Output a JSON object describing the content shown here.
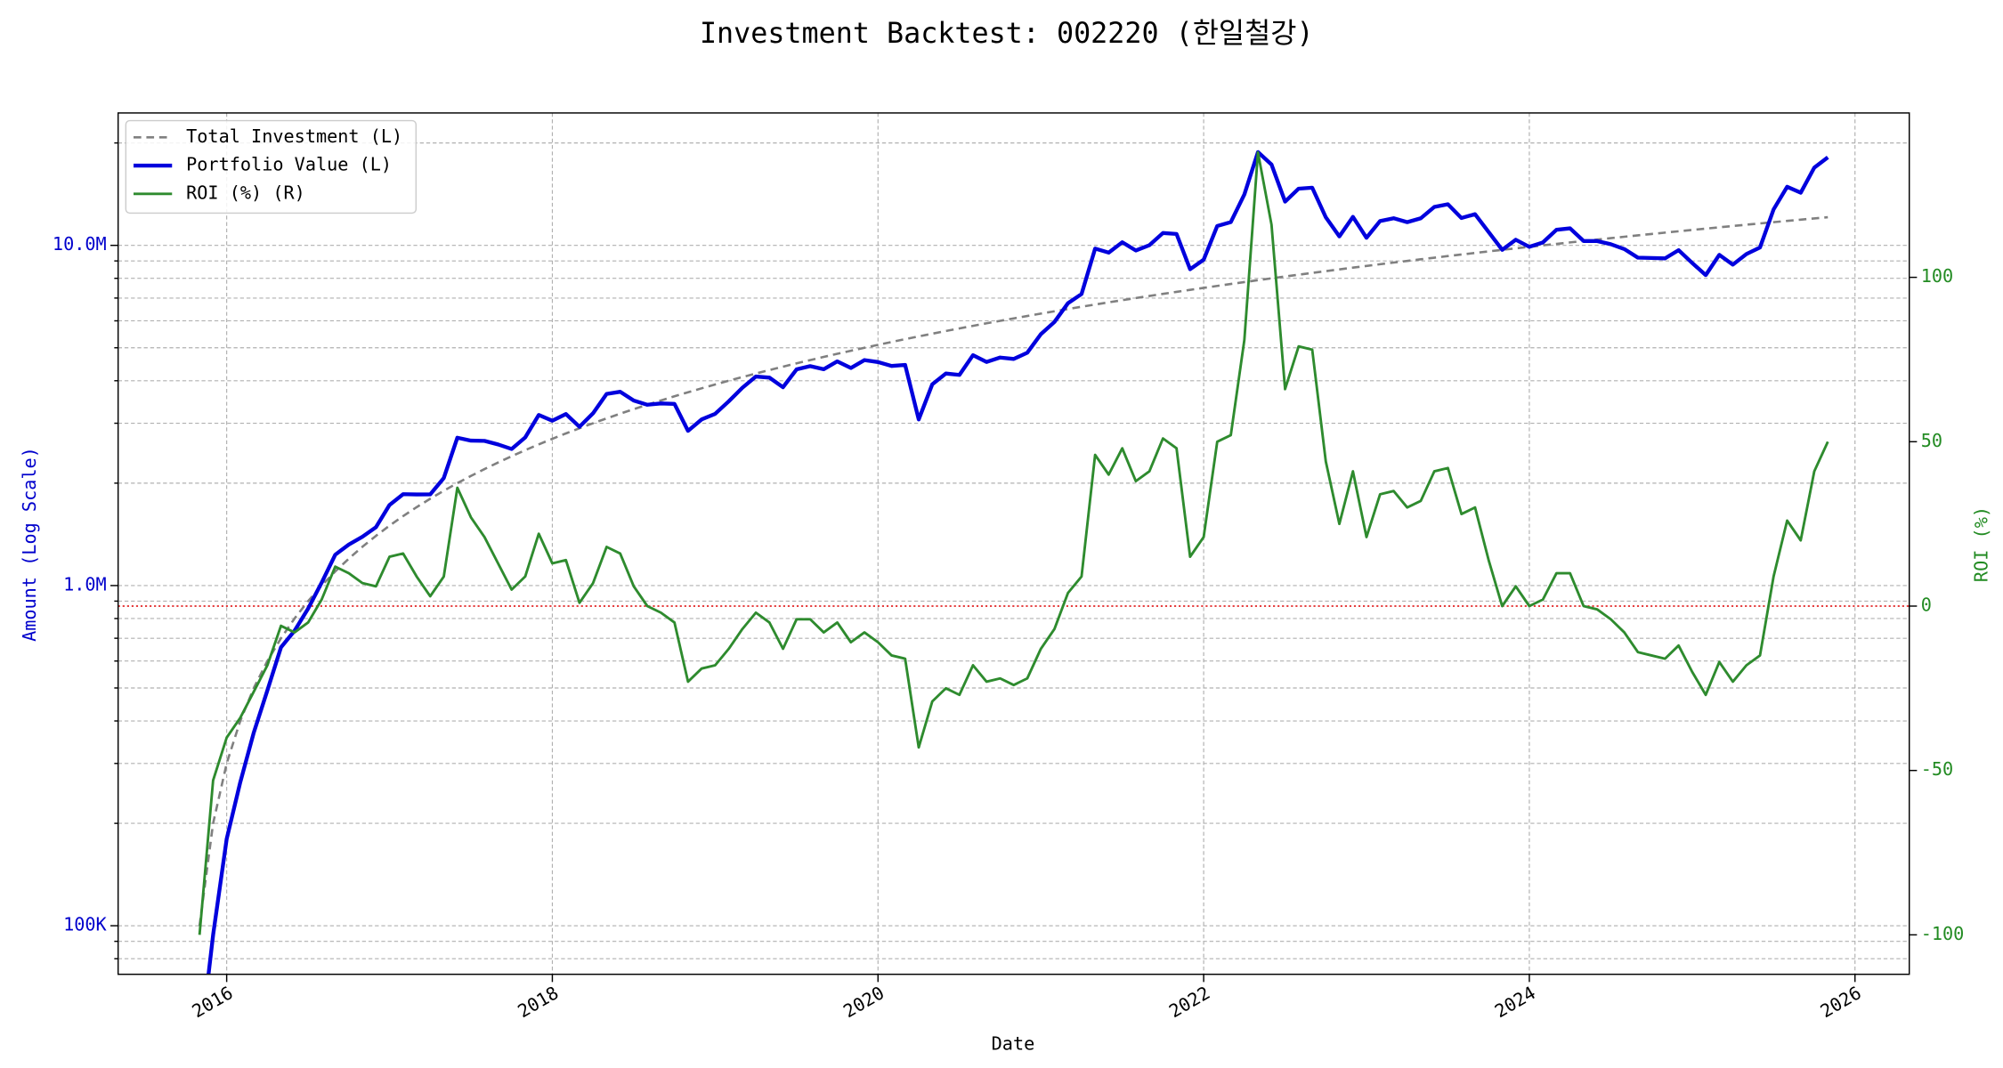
{
  "chart_data": {
    "type": "line",
    "title": "Investment Backtest: 002220 (한일철강)",
    "xlabel": "Date",
    "ylabel": "Amount (Log Scale)",
    "y2label": "ROI (%)",
    "ylog": true,
    "grid": true,
    "legend": "upper left",
    "ylabel_color": "#0000cc",
    "y2label_color": "#228b22",
    "x": [
      "2015-11",
      "2015-12",
      "2016-01",
      "2016-02",
      "2016-03",
      "2016-04",
      "2016-05",
      "2016-06",
      "2016-07",
      "2016-08",
      "2016-09",
      "2016-10",
      "2016-11",
      "2016-12",
      "2017-01",
      "2017-02",
      "2017-03",
      "2017-04",
      "2017-05",
      "2017-06",
      "2017-07",
      "2017-08",
      "2017-09",
      "2017-10",
      "2017-11",
      "2017-12",
      "2018-01",
      "2018-02",
      "2018-03",
      "2018-04",
      "2018-05",
      "2018-06",
      "2018-07",
      "2018-08",
      "2018-09",
      "2018-10",
      "2018-11",
      "2018-12",
      "2019-01",
      "2019-02",
      "2019-03",
      "2019-04",
      "2019-05",
      "2019-06",
      "2019-07",
      "2019-08",
      "2019-09",
      "2019-10",
      "2019-11",
      "2019-12",
      "2020-01",
      "2020-02",
      "2020-03",
      "2020-04",
      "2020-05",
      "2020-06",
      "2020-07",
      "2020-08",
      "2020-09",
      "2020-10",
      "2020-11",
      "2020-12",
      "2021-01",
      "2021-02",
      "2021-03",
      "2021-04",
      "2021-05",
      "2021-06",
      "2021-07",
      "2021-08",
      "2021-09",
      "2021-10",
      "2021-11",
      "2021-12",
      "2022-01",
      "2022-02",
      "2022-03",
      "2022-04",
      "2022-05",
      "2022-06",
      "2022-07",
      "2022-08",
      "2022-09",
      "2022-10",
      "2022-11",
      "2022-12",
      "2023-01",
      "2023-02",
      "2023-03",
      "2023-04",
      "2023-05",
      "2023-06",
      "2023-07",
      "2023-08",
      "2023-09",
      "2023-10",
      "2023-11",
      "2023-12",
      "2024-01",
      "2024-02",
      "2024-03",
      "2024-04",
      "2024-05",
      "2024-06",
      "2024-07",
      "2024-08",
      "2024-09",
      "2024-10",
      "2024-11",
      "2024-12",
      "2025-01",
      "2025-02",
      "2025-03",
      "2025-04",
      "2025-05",
      "2025-06",
      "2025-07",
      "2025-08",
      "2025-09",
      "2025-10",
      "2025-11"
    ],
    "xlim": [
      "2015-05",
      "2026-05"
    ],
    "xticks": [
      {
        "value": "2016-01",
        "label": "2016"
      },
      {
        "value": "2018-01",
        "label": "2018"
      },
      {
        "value": "2020-01",
        "label": "2020"
      },
      {
        "value": "2022-01",
        "label": "2022"
      },
      {
        "value": "2024-01",
        "label": "2024"
      },
      {
        "value": "2026-01",
        "label": "2026"
      }
    ],
    "ylim": [
      72000,
      24500000
    ],
    "yticks": [
      {
        "value": 100000,
        "label": "100K"
      },
      {
        "value": 1000000,
        "label": "1.0M"
      },
      {
        "value": 10000000,
        "label": "10.0M"
      }
    ],
    "yminorticks": [
      80000,
      90000,
      200000,
      300000,
      400000,
      500000,
      600000,
      700000,
      800000,
      900000,
      2000000,
      3000000,
      4000000,
      5000000,
      6000000,
      7000000,
      8000000,
      9000000,
      20000000
    ],
    "y2lim": [
      -112,
      150
    ],
    "y2ticks": [
      -100,
      -50,
      0,
      50,
      100
    ],
    "reference_line": {
      "axis": "y2",
      "value": 0,
      "color": "#dd0000"
    },
    "series": [
      {
        "name": "Total Investment (L)",
        "color": "#808080",
        "dash": true,
        "axis": "y",
        "values": [
          100000,
          200000,
          300000,
          400000,
          500000,
          600000,
          700000,
          800000,
          900000,
          1000000,
          1100000,
          1200000,
          1300000,
          1400000,
          1500000,
          1600000,
          1700000,
          1800000,
          1900000,
          2000000,
          2100000,
          2200000,
          2300000,
          2400000,
          2500000,
          2600000,
          2700000,
          2800000,
          2900000,
          3000000,
          3100000,
          3200000,
          3300000,
          3400000,
          3500000,
          3600000,
          3700000,
          3800000,
          3900000,
          4000000,
          4100000,
          4200000,
          4300000,
          4400000,
          4500000,
          4600000,
          4700000,
          4800000,
          4900000,
          5000000,
          5100000,
          5200000,
          5300000,
          5400000,
          5500000,
          5600000,
          5700000,
          5800000,
          5900000,
          6000000,
          6100000,
          6200000,
          6300000,
          6400000,
          6500000,
          6600000,
          6700000,
          6800000,
          6900000,
          7000000,
          7100000,
          7200000,
          7300000,
          7400000,
          7500000,
          7600000,
          7700000,
          7800000,
          7900000,
          8000000,
          8100000,
          8200000,
          8300000,
          8400000,
          8500000,
          8600000,
          8700000,
          8800000,
          8900000,
          9000000,
          9100000,
          9200000,
          9300000,
          9400000,
          9500000,
          9600000,
          9700000,
          9800000,
          9900000,
          10000000,
          10100000,
          10200000,
          10300000,
          10400000,
          10500000,
          10600000,
          10700000,
          10800000,
          10900000,
          11000000,
          11100000,
          11200000,
          11300000,
          11400000,
          11500000,
          11600000,
          11700000,
          11800000,
          11900000,
          12000000,
          12100000
        ]
      },
      {
        "name": "Portfolio Value (L)",
        "color": "#0000dd",
        "width": 3,
        "axis": "y",
        "values": [
          0,
          94000,
          180000,
          264000,
          370000,
          492000,
          658000,
          736000,
          855000,
          1020000,
          1232000,
          1320000,
          1391000,
          1484000,
          1725000,
          1856000,
          1853000,
          1854000,
          2071000,
          2720000,
          2667000,
          2662000,
          2599000,
          2520000,
          2725000,
          3172000,
          3051000,
          3192000,
          2929000,
          3210000,
          3658000,
          3712000,
          3498000,
          3400000,
          3430000,
          3420000,
          2849000,
          3078000,
          3198000,
          3480000,
          3813000,
          4116000,
          4085000,
          3828000,
          4320000,
          4416000,
          4324000,
          4560000,
          4361000,
          4600000,
          4539000,
          4420000,
          4452000,
          3078000,
          3905000,
          4200000,
          4161000,
          4756000,
          4543000,
          4680000,
          4636000,
          4836000,
          5481000,
          5952000,
          6760000,
          7194000,
          9782000,
          9520000,
          10212000,
          9660000,
          10011000,
          10872000,
          10804000,
          8510000,
          9075000,
          11400000,
          11704000,
          14118000,
          18802000,
          17280000,
          13446000,
          14678000,
          14774000,
          12096000,
          10625000,
          12126000,
          10527000,
          11792000,
          12015000,
          11700000,
          12012000,
          12972000,
          13206000,
          12032000,
          12350000,
          10944000,
          9700000,
          10388000,
          9900000,
          10200000,
          11110000,
          11220000,
          10300000,
          10296000,
          10080000,
          9752000,
          9202000,
          9180000,
          9156000,
          9680000,
          8880000,
          8176000,
          9379000,
          8778000,
          9430000,
          9860000,
          12753000,
          14868000,
          14280000,
          16920000,
          18150000
        ]
      },
      {
        "name": "ROI (%) (R)",
        "color": "#2e8b2e",
        "width": 2,
        "axis": "y2",
        "values": [
          -100,
          -53,
          -40,
          -34,
          -26,
          -18,
          -6,
          -8,
          -5,
          2,
          12,
          10,
          7,
          6,
          15,
          16,
          9,
          3,
          9,
          36,
          27,
          21,
          13,
          5,
          9,
          22,
          13,
          14,
          1,
          7,
          18,
          16,
          6,
          0,
          -2,
          -5,
          -23,
          -19,
          -18,
          -13,
          -7,
          -2,
          -5,
          -13,
          -4,
          -4,
          -8,
          -5,
          -11,
          -8,
          -11,
          -15,
          -16,
          -43,
          -29,
          -25,
          -27,
          -18,
          -23,
          -22,
          -24,
          -22,
          -13,
          -7,
          4,
          9,
          46,
          40,
          48,
          38,
          41,
          51,
          48,
          15,
          21,
          50,
          52,
          81,
          138,
          116,
          66,
          79,
          78,
          44,
          25,
          41,
          21,
          34,
          35,
          30,
          32,
          41,
          42,
          28,
          30,
          14,
          0,
          6,
          0,
          2,
          10,
          10,
          0,
          -1,
          -4,
          -8,
          -14,
          -15,
          -16,
          -12,
          -20,
          -27,
          -17,
          -23,
          -18,
          -15,
          9,
          26,
          20,
          41,
          50
        ]
      }
    ]
  }
}
